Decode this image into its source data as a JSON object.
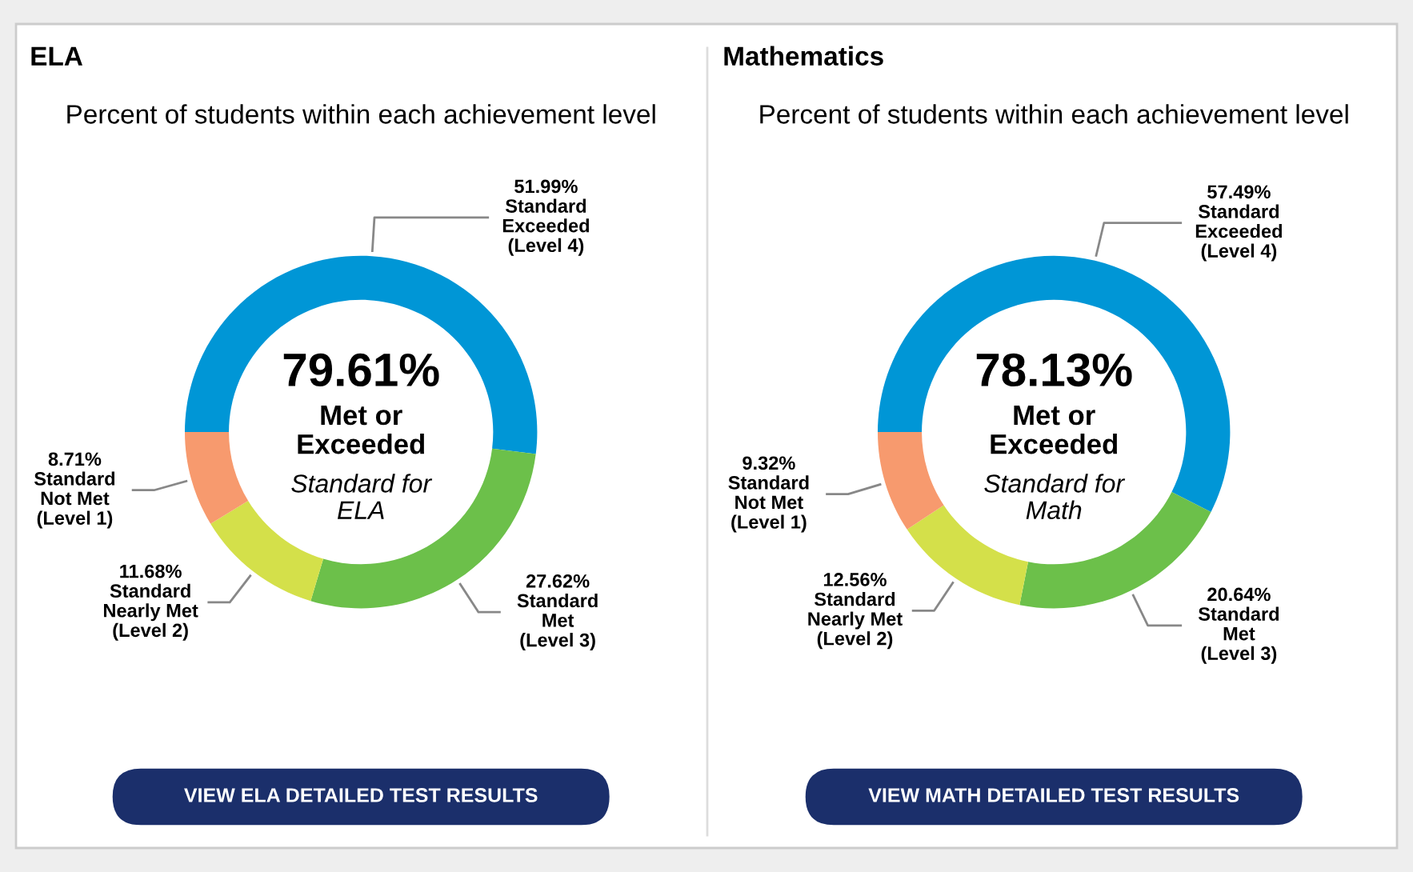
{
  "chart_data": [
    {
      "type": "donut",
      "title": "ELA",
      "subtitle": "Percent of students within each achievement level",
      "categories": [
        "Standard\nExceeded\n(Level 4)",
        "Standard\nMet\n(Level 3)",
        "Standard\nNearly Met\n(Level 2)",
        "Standard\nNot Met\n(Level 1)"
      ],
      "values": [
        51.99,
        27.62,
        11.68,
        8.71
      ],
      "value_labels": [
        "51.99%",
        "27.62%",
        "11.68%",
        "8.71%"
      ],
      "colors": [
        "#0096d6",
        "#6cc04a",
        "#d4e04a",
        "#f79a6e"
      ],
      "annotations": [
        "79.61%",
        "Met or\nExceeded",
        "Standard for\nELA",
        "VIEW ELA DETAILED TEST RESULTS"
      ]
    },
    {
      "type": "donut",
      "title": "Mathematics",
      "subtitle": "Percent of students within each achievement level",
      "categories": [
        "Standard\nExceeded\n(Level 4)",
        "Standard\nMet\n(Level 3)",
        "Standard\nNearly Met\n(Level 2)",
        "Standard\nNot Met\n(Level 1)"
      ],
      "values": [
        57.49,
        20.64,
        12.56,
        9.32
      ],
      "value_labels": [
        "57.49%",
        "20.64%",
        "12.56%",
        "9.32%"
      ],
      "colors": [
        "#0096d6",
        "#6cc04a",
        "#d4e04a",
        "#f79a6e"
      ],
      "annotations": [
        "78.13%",
        "Met or\nExceeded",
        "Standard for\nMath",
        "VIEW MATH DETAILED TEST RESULTS"
      ]
    }
  ]
}
